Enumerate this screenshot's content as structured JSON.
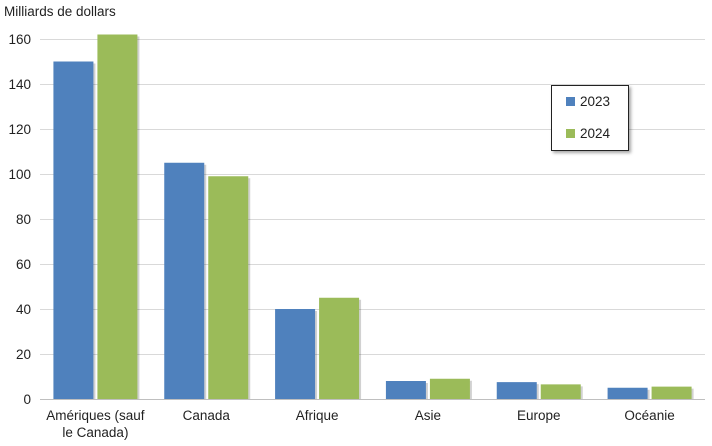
{
  "chart_data": {
    "type": "bar",
    "title": "",
    "ylabel": "Milliards de dollars",
    "xlabel": "",
    "ylim": [
      0,
      160
    ],
    "yticks": [
      0,
      20,
      40,
      60,
      80,
      100,
      120,
      140,
      160
    ],
    "grid": true,
    "legend_position": "top-right",
    "categories": [
      [
        "Amériques (sauf",
        "le Canada)"
      ],
      [
        "Canada"
      ],
      [
        "Afrique"
      ],
      [
        "Asie"
      ],
      [
        "Europe"
      ],
      [
        "Océanie"
      ]
    ],
    "series": [
      {
        "name": "2023",
        "color": "#4F81BD",
        "values": [
          150,
          105,
          40,
          8,
          7.5,
          5
        ]
      },
      {
        "name": "2024",
        "color": "#9BBB59",
        "values": [
          162,
          99,
          45,
          9,
          6.5,
          5.5
        ]
      }
    ]
  }
}
